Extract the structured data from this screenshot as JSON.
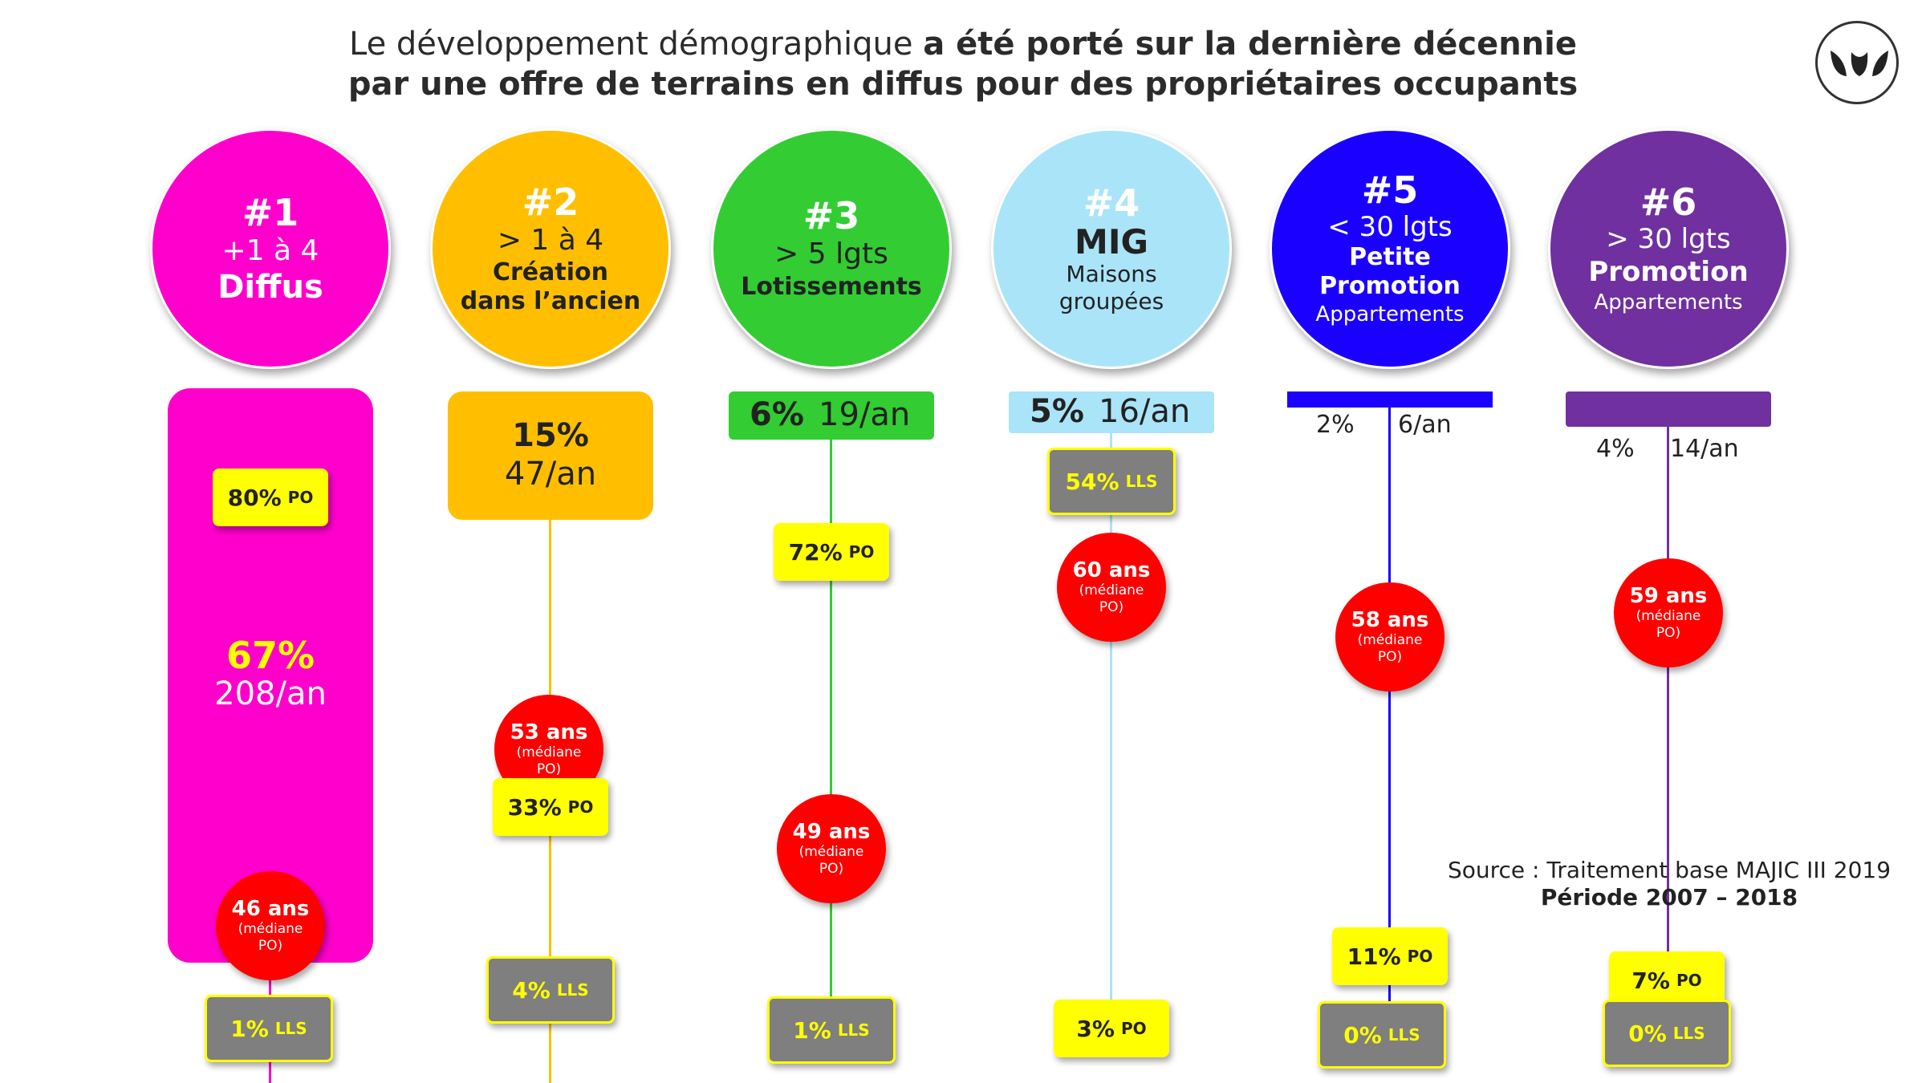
{
  "title": {
    "line1_normal": "Le développement démographique ",
    "line1_bold": "a été porté sur la dernière décennie",
    "line2": "par une offre de terrains en diffus pour des propriétaires occupants"
  },
  "colors": {
    "c1": "#ff00cc",
    "c2": "#ffbf00",
    "c3": "#33cc33",
    "c4": "#aae4f8",
    "c5": "#1a00ff",
    "c6": "#7030a0",
    "po": "#ffff00",
    "lls": "#7f7f7f",
    "age": "#ff0000"
  },
  "columns": [
    {
      "rank": "#1",
      "line1": "+1 à 4",
      "line2": "Diffus",
      "line3": "",
      "pct": "67%",
      "per_year": "208/an",
      "po": "80%",
      "lls": "1%",
      "age": "46 ans",
      "age_note": "(médiane PO)"
    },
    {
      "rank": "#2",
      "line1": "> 1 à 4",
      "line2": "Création dans l’ancien",
      "line3": "",
      "pct": "15%",
      "per_year": "47/an",
      "po": "33%",
      "lls": "4%",
      "age": "53 ans",
      "age_note": "(médiane PO)"
    },
    {
      "rank": "#3",
      "line1": "> 5 lgts",
      "line2": "Lotissements",
      "line3": "",
      "pct": "6%",
      "per_year": "19/an",
      "po": "72%",
      "lls": "1%",
      "age": "49 ans",
      "age_note": "(médiane PO)"
    },
    {
      "rank": "#4",
      "line1": "MIG",
      "line2": "Maisons groupées",
      "line3": "",
      "pct": "5%",
      "per_year": "16/an",
      "po": "3%",
      "lls": "54%",
      "age": "60 ans",
      "age_note": "(médiane PO)"
    },
    {
      "rank": "#5",
      "line1": "< 30 lgts",
      "line2": "Petite Promotion",
      "line3": "Appartements",
      "pct": "2%",
      "per_year": "6/an",
      "po": "11%",
      "lls": "0%",
      "age": "58 ans",
      "age_note": "(médiane PO)"
    },
    {
      "rank": "#6",
      "line1": "> 30 lgts",
      "line2": "Promotion",
      "line3": "Appartements",
      "pct": "4%",
      "per_year": "14/an",
      "po": "7%",
      "lls": "0%",
      "age": "59 ans",
      "age_note": "(médiane PO)"
    }
  ],
  "labels": {
    "po_unit": "PO",
    "lls_unit": "LLS"
  },
  "source": {
    "line1": "Source : Traitement base MAJIC III 2019",
    "line2": "Période 2007 – 2018"
  }
}
